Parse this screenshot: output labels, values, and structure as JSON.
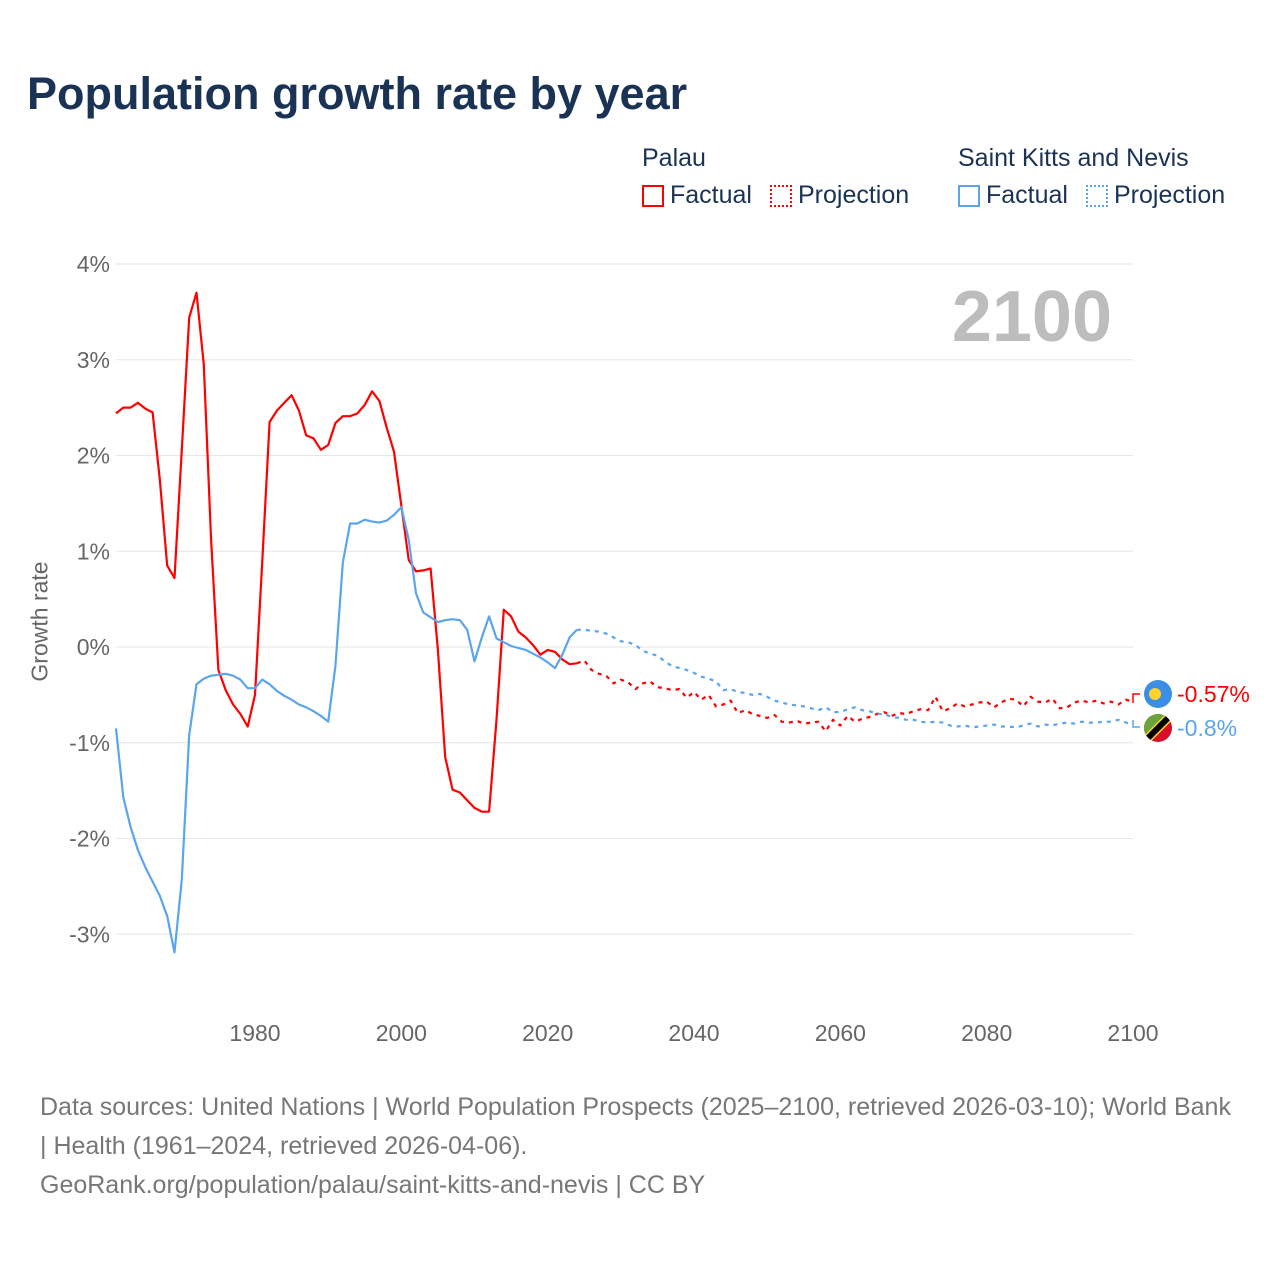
{
  "title": "Population growth rate by year",
  "legend": {
    "groups": [
      {
        "name": "Palau",
        "factual": "Factual",
        "projection": "Projection",
        "color": "#ff0000"
      },
      {
        "name": "Saint Kitts and Nevis",
        "factual": "Factual",
        "projection": "Projection",
        "color": "#5aa5ec"
      }
    ]
  },
  "year_badge": "2100",
  "end_labels": {
    "palau": "-0.57%",
    "skn": "-0.8%"
  },
  "source_lines": [
    "Data sources: United Nations | World Population Prospects (2025–2100, retrieved 2026-03-10); World Bank | Health (1961–2024, retrieved 2026-04-06).",
    "GeoRank.org/population/palau/saint-kitts-and-nevis | CC BY"
  ],
  "chart_data": {
    "type": "line",
    "title": "Population growth rate by year",
    "xlabel": "",
    "ylabel": "Growth rate",
    "xlim": [
      1961,
      2100
    ],
    "ylim": [
      -3.8,
      4.2
    ],
    "x_ticks": [
      1980,
      2000,
      2020,
      2040,
      2060,
      2080,
      2100
    ],
    "y_ticks": [
      4,
      3,
      2,
      1,
      0,
      -1,
      -2,
      -3
    ],
    "y_tick_labels": [
      "4%",
      "3%",
      "2%",
      "1%",
      "0%",
      "-1%",
      "-2%",
      "-3%"
    ],
    "grid": true,
    "legend_position": "top-right",
    "series": [
      {
        "name": "Palau",
        "kind": "factual",
        "color": "#ff0000",
        "start_year": 1961,
        "values": [
          2.44,
          2.5,
          2.5,
          2.55,
          2.49,
          2.45,
          1.74,
          0.85,
          0.72,
          2.06,
          3.44,
          3.7,
          2.95,
          1.12,
          -0.24,
          -0.45,
          -0.6,
          -0.7,
          -0.83,
          -0.5,
          0.9,
          2.35,
          2.47,
          2.55,
          2.63,
          2.47,
          2.21,
          2.18,
          2.06,
          2.11,
          2.34,
          2.41,
          2.41,
          2.44,
          2.53,
          2.67,
          2.57,
          2.29,
          2.04,
          1.48,
          0.91,
          0.79,
          0.8,
          0.82,
          -0.03,
          -1.15,
          -1.49,
          -1.52,
          -1.6,
          -1.68,
          -1.72,
          -1.72,
          -0.76,
          0.39,
          0.32,
          0.16,
          0.1,
          0.02,
          -0.08,
          -0.03,
          -0.05,
          -0.13,
          -0.18,
          -0.17
        ]
      },
      {
        "name": "Palau",
        "kind": "projection",
        "color": "#ff0000",
        "start_year": 2024,
        "values": [
          -0.17,
          -0.14,
          -0.24,
          -0.28,
          -0.3,
          -0.38,
          -0.34,
          -0.37,
          -0.44,
          -0.38,
          -0.36,
          -0.42,
          -0.43,
          -0.45,
          -0.44,
          -0.53,
          -0.47,
          -0.55,
          -0.5,
          -0.62,
          -0.6,
          -0.56,
          -0.69,
          -0.66,
          -0.7,
          -0.72,
          -0.74,
          -0.71,
          -0.78,
          -0.79,
          -0.77,
          -0.8,
          -0.79,
          -0.78,
          -0.88,
          -0.76,
          -0.82,
          -0.72,
          -0.78,
          -0.75,
          -0.73,
          -0.7,
          -0.68,
          -0.72,
          -0.69,
          -0.7,
          -0.67,
          -0.65,
          -0.66,
          -0.52,
          -0.67,
          -0.64,
          -0.59,
          -0.62,
          -0.6,
          -0.58,
          -0.57,
          -0.63,
          -0.58,
          -0.54,
          -0.55,
          -0.62,
          -0.52,
          -0.57,
          -0.58,
          -0.54,
          -0.64,
          -0.63,
          -0.58,
          -0.56,
          -0.58,
          -0.56,
          -0.59,
          -0.57,
          -0.6,
          -0.55,
          -0.57
        ]
      },
      {
        "name": "Saint Kitts and Nevis",
        "kind": "factual",
        "color": "#5aa5ec",
        "start_year": 1961,
        "values": [
          -0.85,
          -1.57,
          -1.88,
          -2.12,
          -2.3,
          -2.45,
          -2.6,
          -2.81,
          -3.19,
          -2.43,
          -0.92,
          -0.39,
          -0.33,
          -0.3,
          -0.29,
          -0.28,
          -0.3,
          -0.34,
          -0.43,
          -0.43,
          -0.34,
          -0.39,
          -0.46,
          -0.51,
          -0.55,
          -0.6,
          -0.63,
          -0.67,
          -0.72,
          -0.78,
          -0.19,
          0.88,
          1.29,
          1.29,
          1.33,
          1.31,
          1.3,
          1.32,
          1.38,
          1.46,
          1.12,
          0.56,
          0.36,
          0.31,
          0.26,
          0.28,
          0.29,
          0.28,
          0.18,
          -0.15,
          0.1,
          0.32,
          0.09,
          0.05,
          0.01,
          -0.01,
          -0.03,
          -0.07,
          -0.11,
          -0.16,
          -0.22,
          -0.08,
          0.1,
          0.18
        ]
      },
      {
        "name": "Saint Kitts and Nevis",
        "kind": "projection",
        "color": "#5aa5ec",
        "start_year": 2024,
        "values": [
          0.18,
          0.18,
          0.17,
          0.16,
          0.14,
          0.1,
          0.06,
          0.05,
          0.02,
          -0.04,
          -0.07,
          -0.09,
          -0.15,
          -0.2,
          -0.22,
          -0.24,
          -0.27,
          -0.31,
          -0.33,
          -0.36,
          -0.45,
          -0.44,
          -0.47,
          -0.48,
          -0.5,
          -0.49,
          -0.52,
          -0.56,
          -0.58,
          -0.6,
          -0.61,
          -0.62,
          -0.64,
          -0.66,
          -0.63,
          -0.68,
          -0.68,
          -0.65,
          -0.63,
          -0.66,
          -0.67,
          -0.7,
          -0.7,
          -0.73,
          -0.74,
          -0.76,
          -0.76,
          -0.78,
          -0.79,
          -0.78,
          -0.79,
          -0.82,
          -0.83,
          -0.82,
          -0.84,
          -0.83,
          -0.82,
          -0.81,
          -0.83,
          -0.83,
          -0.84,
          -0.82,
          -0.8,
          -0.83,
          -0.81,
          -0.82,
          -0.8,
          -0.79,
          -0.8,
          -0.78,
          -0.79,
          -0.79,
          -0.78,
          -0.78,
          -0.76,
          -0.79,
          -0.8
        ]
      }
    ]
  }
}
